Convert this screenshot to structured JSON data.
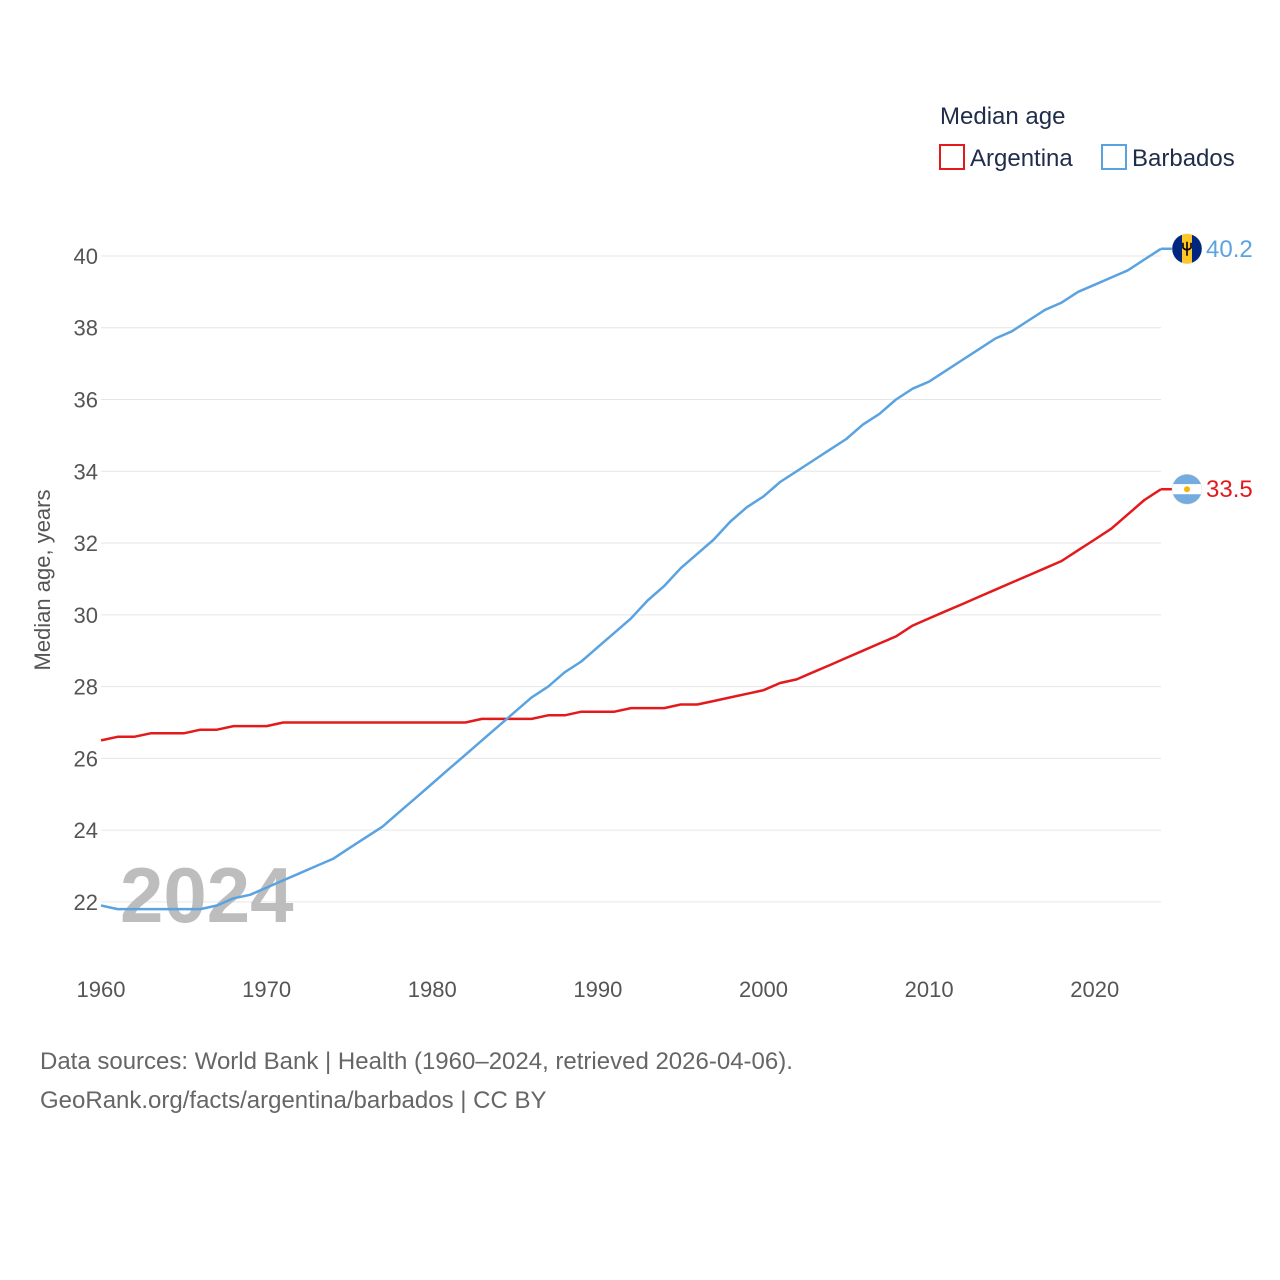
{
  "chart_data": {
    "type": "line",
    "title": "",
    "xlabel": "",
    "ylabel": "Median age, years",
    "xlim": [
      1960,
      2024
    ],
    "ylim": [
      20.8,
      40.5
    ],
    "xticks": [
      1960,
      1970,
      1980,
      1990,
      2000,
      2010,
      2020
    ],
    "yticks": [
      22,
      24,
      26,
      28,
      30,
      32,
      34,
      36,
      38,
      40
    ],
    "grid": true,
    "legend": {
      "title": "Median age",
      "position": "top-right"
    },
    "year_label": "2024",
    "series": [
      {
        "name": "Argentina",
        "color": "#e31a1c",
        "end_label": "33.5",
        "flag": "argentina-flag-icon",
        "points": [
          [
            1960,
            26.5
          ],
          [
            1961,
            26.6
          ],
          [
            1962,
            26.6
          ],
          [
            1963,
            26.7
          ],
          [
            1964,
            26.7
          ],
          [
            1965,
            26.7
          ],
          [
            1966,
            26.8
          ],
          [
            1967,
            26.8
          ],
          [
            1968,
            26.9
          ],
          [
            1969,
            26.9
          ],
          [
            1970,
            26.9
          ],
          [
            1971,
            27.0
          ],
          [
            1972,
            27.0
          ],
          [
            1973,
            27.0
          ],
          [
            1974,
            27.0
          ],
          [
            1975,
            27.0
          ],
          [
            1976,
            27.0
          ],
          [
            1977,
            27.0
          ],
          [
            1978,
            27.0
          ],
          [
            1979,
            27.0
          ],
          [
            1980,
            27.0
          ],
          [
            1981,
            27.0
          ],
          [
            1982,
            27.0
          ],
          [
            1983,
            27.1
          ],
          [
            1984,
            27.1
          ],
          [
            1985,
            27.1
          ],
          [
            1986,
            27.1
          ],
          [
            1987,
            27.2
          ],
          [
            1988,
            27.2
          ],
          [
            1989,
            27.3
          ],
          [
            1990,
            27.3
          ],
          [
            1991,
            27.3
          ],
          [
            1992,
            27.4
          ],
          [
            1993,
            27.4
          ],
          [
            1994,
            27.4
          ],
          [
            1995,
            27.5
          ],
          [
            1996,
            27.5
          ],
          [
            1997,
            27.6
          ],
          [
            1998,
            27.7
          ],
          [
            1999,
            27.8
          ],
          [
            2000,
            27.9
          ],
          [
            2001,
            28.1
          ],
          [
            2002,
            28.2
          ],
          [
            2003,
            28.4
          ],
          [
            2004,
            28.6
          ],
          [
            2005,
            28.8
          ],
          [
            2006,
            29.0
          ],
          [
            2007,
            29.2
          ],
          [
            2008,
            29.4
          ],
          [
            2009,
            29.7
          ],
          [
            2010,
            29.9
          ],
          [
            2011,
            30.1
          ],
          [
            2012,
            30.3
          ],
          [
            2013,
            30.5
          ],
          [
            2014,
            30.7
          ],
          [
            2015,
            30.9
          ],
          [
            2016,
            31.1
          ],
          [
            2017,
            31.3
          ],
          [
            2018,
            31.5
          ],
          [
            2019,
            31.8
          ],
          [
            2020,
            32.1
          ],
          [
            2021,
            32.4
          ],
          [
            2022,
            32.8
          ],
          [
            2023,
            33.2
          ],
          [
            2024,
            33.5
          ]
        ]
      },
      {
        "name": "Barbados",
        "color": "#5ba3e0",
        "end_label": "40.2",
        "flag": "barbados-flag-icon",
        "points": [
          [
            1960,
            21.9
          ],
          [
            1961,
            21.8
          ],
          [
            1962,
            21.8
          ],
          [
            1963,
            21.8
          ],
          [
            1964,
            21.8
          ],
          [
            1965,
            21.8
          ],
          [
            1966,
            21.8
          ],
          [
            1967,
            21.9
          ],
          [
            1968,
            22.1
          ],
          [
            1969,
            22.2
          ],
          [
            1970,
            22.4
          ],
          [
            1971,
            22.6
          ],
          [
            1972,
            22.8
          ],
          [
            1973,
            23.0
          ],
          [
            1974,
            23.2
          ],
          [
            1975,
            23.5
          ],
          [
            1976,
            23.8
          ],
          [
            1977,
            24.1
          ],
          [
            1978,
            24.5
          ],
          [
            1979,
            24.9
          ],
          [
            1980,
            25.3
          ],
          [
            1981,
            25.7
          ],
          [
            1982,
            26.1
          ],
          [
            1983,
            26.5
          ],
          [
            1984,
            26.9
          ],
          [
            1985,
            27.3
          ],
          [
            1986,
            27.7
          ],
          [
            1987,
            28.0
          ],
          [
            1988,
            28.4
          ],
          [
            1989,
            28.7
          ],
          [
            1990,
            29.1
          ],
          [
            1991,
            29.5
          ],
          [
            1992,
            29.9
          ],
          [
            1993,
            30.4
          ],
          [
            1994,
            30.8
          ],
          [
            1995,
            31.3
          ],
          [
            1996,
            31.7
          ],
          [
            1997,
            32.1
          ],
          [
            1998,
            32.6
          ],
          [
            1999,
            33.0
          ],
          [
            2000,
            33.3
          ],
          [
            2001,
            33.7
          ],
          [
            2002,
            34.0
          ],
          [
            2003,
            34.3
          ],
          [
            2004,
            34.6
          ],
          [
            2005,
            34.9
          ],
          [
            2006,
            35.3
          ],
          [
            2007,
            35.6
          ],
          [
            2008,
            36.0
          ],
          [
            2009,
            36.3
          ],
          [
            2010,
            36.5
          ],
          [
            2011,
            36.8
          ],
          [
            2012,
            37.1
          ],
          [
            2013,
            37.4
          ],
          [
            2014,
            37.7
          ],
          [
            2015,
            37.9
          ],
          [
            2016,
            38.2
          ],
          [
            2017,
            38.5
          ],
          [
            2018,
            38.7
          ],
          [
            2019,
            39.0
          ],
          [
            2020,
            39.2
          ],
          [
            2021,
            39.4
          ],
          [
            2022,
            39.6
          ],
          [
            2023,
            39.9
          ],
          [
            2024,
            40.2
          ]
        ]
      }
    ]
  },
  "sources": {
    "line1": "Data sources: World Bank | Health (1960–2024, retrieved 2026-04-06).",
    "line2": "GeoRank.org/facts/argentina/barbados | CC BY"
  }
}
